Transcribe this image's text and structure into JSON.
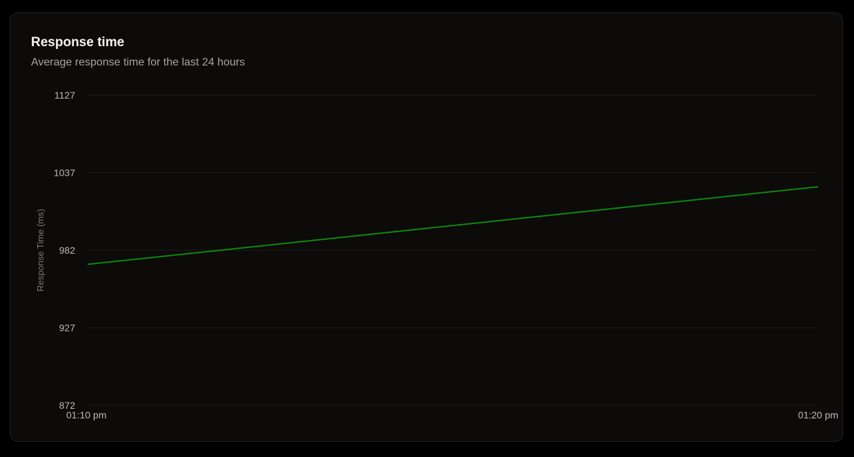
{
  "card": {
    "title": "Response time",
    "subtitle": "Average response time for the last 24 hours"
  },
  "chart_data": {
    "type": "line",
    "title": "Response time",
    "subtitle": "Average response time for the last 24 hours",
    "xlabel": "",
    "ylabel": "Response Time (ms)",
    "x_ticks": [
      "01:10 pm",
      "01:20 pm"
    ],
    "y_ticks": [
      1127,
      1037,
      982,
      927,
      872
    ],
    "grid": true,
    "legend": "none",
    "series": [
      {
        "color": "#0d8a0d",
        "points": [
          {
            "x": "01:10 pm",
            "y": 972
          },
          {
            "x": "01:20 pm",
            "y": 1027
          }
        ]
      }
    ]
  },
  "colors": {
    "background": "#000000",
    "card": "#0c0b0a",
    "grid": "#1b1a19",
    "line": "#0d8a0d"
  }
}
